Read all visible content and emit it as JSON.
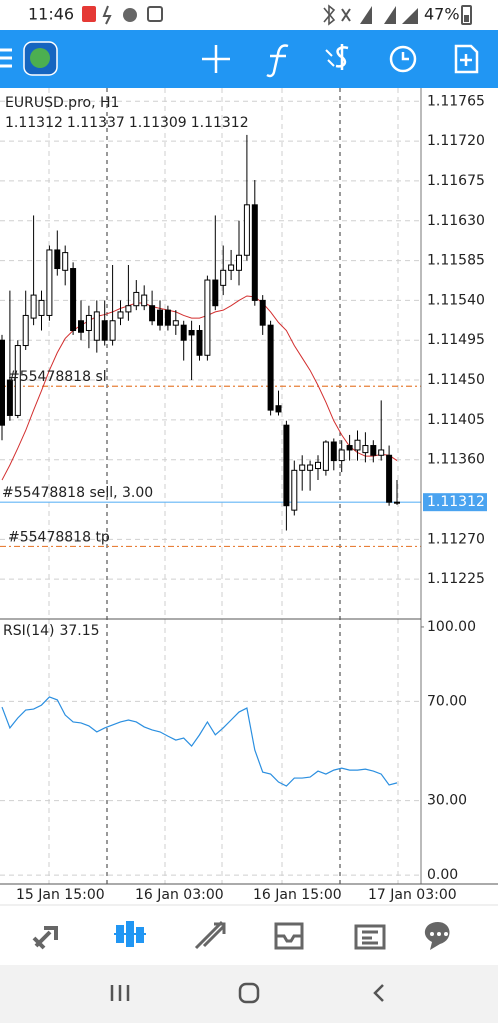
{
  "status_bar": {
    "time": "11:46",
    "battery": "47%"
  },
  "chart_data": [
    {
      "type": "candlestick",
      "title": "EURUSD.pro, H1",
      "open": [
        1.11495,
        1.1145,
        1.1141,
        1.11489,
        1.1152,
        1.11523,
        1.11523,
        1.11597,
        1.11574,
        1.11576,
        1.11517,
        1.11506,
        1.11495,
        1.11517,
        1.11495,
        1.1152,
        1.11527,
        1.11534,
        1.11534,
        1.11534,
        1.11529,
        1.11529,
        1.11512,
        1.11512,
        1.11506,
        1.11506,
        1.11478,
        1.11563,
        1.11557,
        1.11574,
        1.11574,
        1.11591,
        1.11648,
        1.1154,
        1.11512,
        1.11421,
        1.11399,
        1.11303,
        1.11348,
        1.11348,
        1.1135,
        1.11348,
        1.1138,
        1.11359,
        1.11376,
        1.11371,
        1.11368,
        1.11376,
        1.11365,
        1.11365,
        1.11312
      ],
      "high": [
        1.11501,
        1.11551,
        1.11495,
        1.11551,
        1.11636,
        1.11551,
        1.11602,
        1.11619,
        1.11602,
        1.11583,
        1.1154,
        1.11534,
        1.1154,
        1.1154,
        1.1158,
        1.1154,
        1.1158,
        1.11563,
        1.11557,
        1.11551,
        1.1154,
        1.11534,
        1.11529,
        1.11517,
        1.11517,
        1.11512,
        1.11568,
        1.11636,
        1.11602,
        1.11597,
        1.1163,
        1.11727,
        1.11676,
        1.11546,
        1.11517,
        1.11438,
        1.11404,
        1.11359,
        1.11365,
        1.11359,
        1.11365,
        1.11382,
        1.11384,
        1.11382,
        1.11388,
        1.11393,
        1.11391,
        1.11382,
        1.11427,
        1.11376,
        1.11337
      ],
      "low": [
        1.11382,
        1.11404,
        1.11407,
        1.11484,
        1.11512,
        1.11506,
        1.11517,
        1.11568,
        1.11557,
        1.11501,
        1.11495,
        1.11486,
        1.11481,
        1.11489,
        1.11489,
        1.11512,
        1.11517,
        1.11529,
        1.11529,
        1.11512,
        1.11506,
        1.11506,
        1.11501,
        1.11472,
        1.1145,
        1.11472,
        1.11472,
        1.11529,
        1.11546,
        1.11563,
        1.11557,
        1.11585,
        1.11534,
        1.11501,
        1.1141,
        1.1141,
        1.1128,
        1.11297,
        1.11325,
        1.11325,
        1.11337,
        1.11342,
        1.11348,
        1.11346,
        1.11359,
        1.11359,
        1.11357,
        1.11357,
        1.11359,
        1.11308,
        1.11309
      ],
      "close": [
        1.11399,
        1.1141,
        1.11489,
        1.11523,
        1.11546,
        1.1154,
        1.11597,
        1.11576,
        1.11594,
        1.11506,
        1.11504,
        1.11523,
        1.11527,
        1.11495,
        1.11517,
        1.11527,
        1.11534,
        1.11549,
        1.11546,
        1.11517,
        1.11512,
        1.11512,
        1.11517,
        1.11495,
        1.11501,
        1.11478,
        1.11563,
        1.11534,
        1.11574,
        1.1158,
        1.11591,
        1.11648,
        1.1154,
        1.11512,
        1.11416,
        1.11414,
        1.11308,
        1.11348,
        1.11354,
        1.11354,
        1.11357,
        1.1138,
        1.11359,
        1.11371,
        1.11371,
        1.11382,
        1.11376,
        1.11365,
        1.11371,
        1.11312,
        1.11312
      ],
      "ma": {
        "color": "#d32f2f",
        "values": [
          1.11337,
          1.11354,
          1.11373,
          1.11393,
          1.11416,
          1.11438,
          1.11461,
          1.11481,
          1.11497,
          1.11506,
          1.11512,
          1.11517,
          1.11522,
          1.11524,
          1.11527,
          1.11531,
          1.11534,
          1.11537,
          1.11537,
          1.11533,
          1.11531,
          1.11529,
          1.11527,
          1.11523,
          1.1152,
          1.1152,
          1.11523,
          1.11527,
          1.11529,
          1.11534,
          1.1154,
          1.11545,
          1.11544,
          1.11537,
          1.11527,
          1.11515,
          1.11506,
          1.11489,
          1.11475,
          1.11461,
          1.11444,
          1.11425,
          1.11404,
          1.11388,
          1.11375,
          1.11368,
          1.11364,
          1.11364,
          1.11366,
          1.11365,
          1.11359
        ]
      },
      "ylim": [
        1.1118,
        1.1178
      ],
      "yticks": [
        1.11765,
        {
          "value": 1.1172,
          "label": "1.11720"
        },
        1.11675,
        {
          "value": 1.1163,
          "label": "1.11630"
        },
        1.11585,
        {
          "value": 1.1154,
          "label": "1.11540"
        },
        1.11495,
        {
          "value": 1.1145,
          "label": "1.11450"
        },
        1.11405,
        {
          "value": 1.1136,
          "label": "1.11360"
        },
        {
          "value": 1.1127,
          "label": "1.11270"
        },
        1.11225
      ],
      "x_labels": [
        "15 Jan 15:00",
        "16 Jan 03:00",
        "16 Jan 15:00",
        "17 Jan 03:00"
      ],
      "orders": [
        {
          "label": "#55478818 sl",
          "value": 1.11443,
          "color": "#e8803a"
        },
        {
          "label": "#55478818 sell, 3.00",
          "value": 1.11312,
          "color": "#64b5f6"
        },
        {
          "label": "#55478818 tp",
          "value": 1.11262,
          "color": "#e8803a"
        }
      ],
      "grid": true
    },
    {
      "type": "line",
      "title": "RSI(14)",
      "color": "#2b8fe0",
      "values": [
        67.7,
        59.3,
        63.3,
        66.5,
        66.9,
        68.5,
        71.8,
        70.6,
        64.5,
        61.7,
        61.3,
        60.1,
        57.7,
        59.3,
        60.5,
        61.7,
        62.5,
        61.7,
        59.7,
        58.5,
        57.7,
        56.0,
        54.4,
        55.2,
        52.0,
        56.5,
        61.7,
        56.5,
        59.3,
        62.5,
        65.7,
        67.3,
        50.4,
        41.5,
        40.7,
        37.5,
        35.9,
        39.1,
        39.1,
        39.5,
        41.9,
        40.7,
        42.3,
        43.1,
        42.3,
        42.3,
        42.7,
        41.9,
        40.7,
        36.3,
        37.15
      ],
      "ylim": [
        -3.6,
        103.2
      ],
      "yticks": [
        {
          "value": 100,
          "label": "100.00"
        },
        {
          "value": 70,
          "label": "70.00"
        },
        {
          "value": 30,
          "label": "30.00"
        },
        {
          "value": 0,
          "label": "0.00"
        }
      ],
      "grid": true
    }
  ]
}
